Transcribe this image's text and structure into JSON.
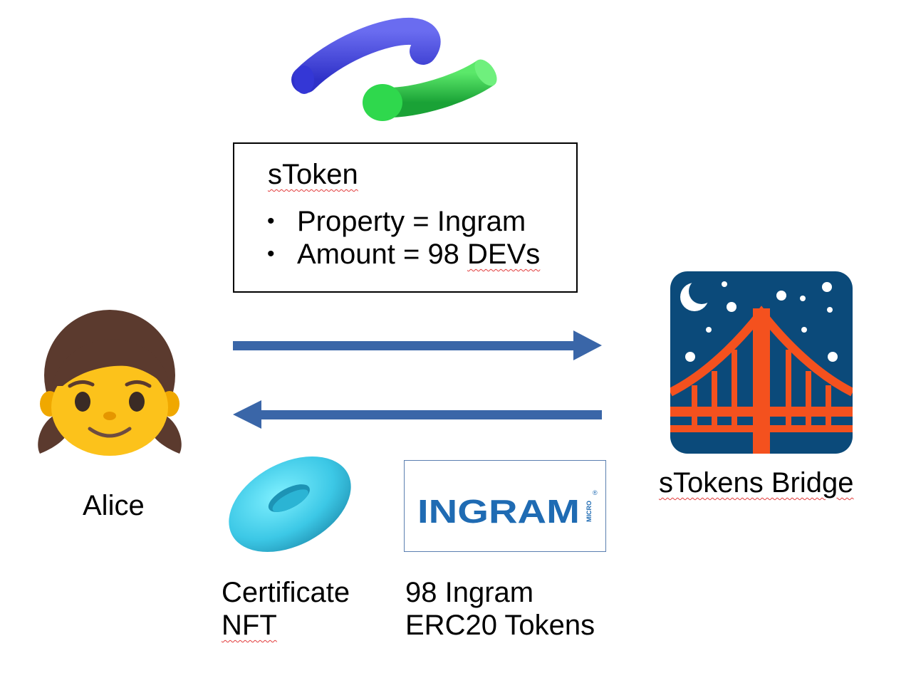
{
  "stoken": {
    "title": "sToken",
    "properties": [
      "Property = Ingram",
      "Amount = 98 DEVs"
    ]
  },
  "alice": {
    "label": "Alice"
  },
  "bridge": {
    "label": "sTokens Bridge"
  },
  "certificate": {
    "label_line1": "Certificate",
    "label_line2": "NFT"
  },
  "tokens": {
    "label_line1": "98 Ingram",
    "label_line2": "ERC20 Tokens"
  },
  "ingram_logo": {
    "text": "INGRAM",
    "micro": "MICRO",
    "reg": "®"
  },
  "icons": {
    "top": "pipe-shapes-icon",
    "alice": "girl-emoji-icon",
    "bridge": "bridge-at-night-icon",
    "certificate": "torus-icon"
  },
  "colors": {
    "arrow": "#3a66a8",
    "ingram_blue": "#1f6bb3",
    "bridge_sky": "#0b4a7a",
    "bridge_red": "#f4511e"
  }
}
